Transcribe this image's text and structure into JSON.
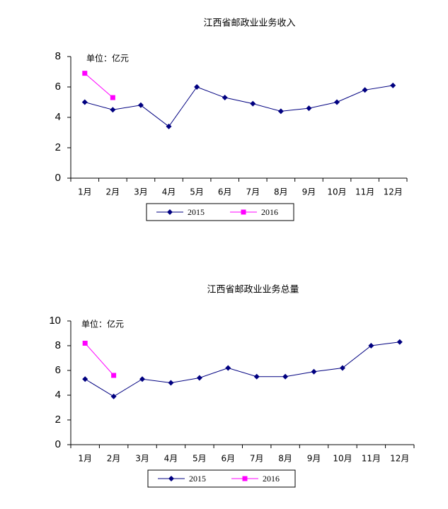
{
  "chart_data": [
    {
      "type": "line",
      "title": "江西省邮政业业务收入",
      "annotation": "单位：亿元",
      "categories": [
        "1月",
        "2月",
        "3月",
        "4月",
        "5月",
        "6月",
        "7月",
        "8月",
        "9月",
        "10月",
        "11月",
        "12月"
      ],
      "series": [
        {
          "name": "2015",
          "color": "#000080",
          "marker": "diamond",
          "values": [
            5.0,
            4.5,
            4.8,
            3.4,
            6.0,
            5.3,
            4.9,
            4.4,
            4.6,
            5.0,
            5.8,
            6.1
          ]
        },
        {
          "name": "2016",
          "color": "#ff00ff",
          "marker": "square",
          "values": [
            6.9,
            5.3,
            null,
            null,
            null,
            null,
            null,
            null,
            null,
            null,
            null,
            null
          ]
        }
      ],
      "ylim": [
        0,
        8
      ],
      "yticks": [
        0,
        2,
        4,
        6,
        8
      ],
      "grid": false,
      "legend": "bottom"
    },
    {
      "type": "line",
      "title": "江西省邮政业业务总量",
      "annotation": "单位：亿元",
      "categories": [
        "1月",
        "2月",
        "3月",
        "4月",
        "5月",
        "6月",
        "7月",
        "8月",
        "9月",
        "10月",
        "11月",
        "12月"
      ],
      "series": [
        {
          "name": "2015",
          "color": "#000080",
          "marker": "diamond",
          "values": [
            5.3,
            3.9,
            5.3,
            5.0,
            5.4,
            6.2,
            5.5,
            5.5,
            5.9,
            6.2,
            8.0,
            8.3
          ]
        },
        {
          "name": "2016",
          "color": "#ff00ff",
          "marker": "square",
          "values": [
            8.2,
            5.6,
            null,
            null,
            null,
            null,
            null,
            null,
            null,
            null,
            null,
            null
          ]
        }
      ],
      "ylim": [
        0,
        10
      ],
      "yticks": [
        0,
        2,
        4,
        6,
        8,
        10
      ],
      "grid": false,
      "legend": "bottom"
    }
  ]
}
